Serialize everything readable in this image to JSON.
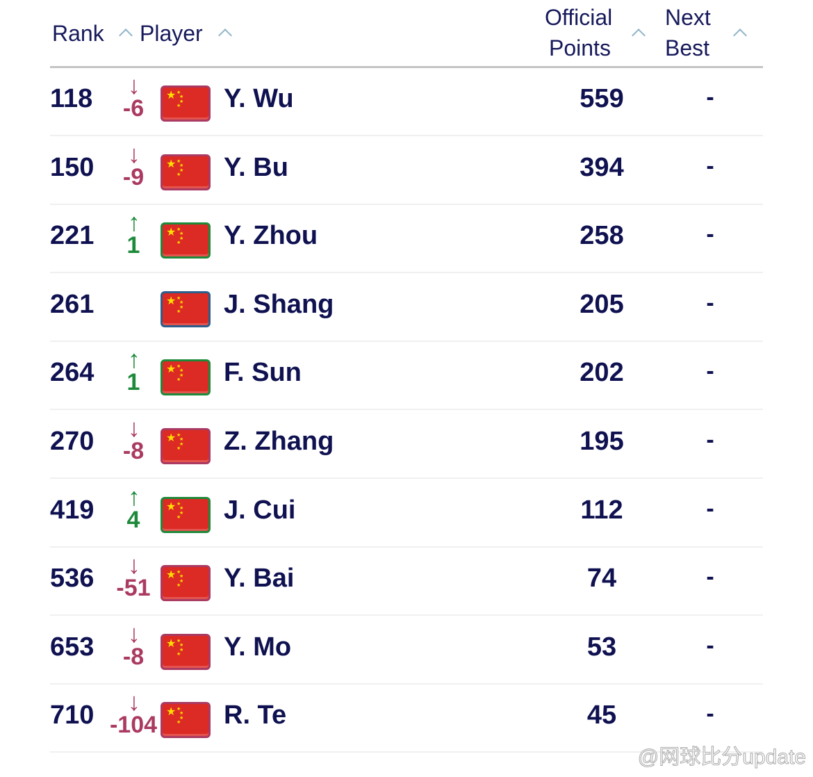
{
  "header": {
    "rank": "Rank",
    "player": "Player",
    "points_line1": "Official",
    "points_line2": "Points",
    "next_line1": "Next",
    "next_line2": "Best"
  },
  "colors": {
    "down": "#ab3a62",
    "up": "#1d8a3a",
    "same": "#2b5e8c",
    "flag": "#dc2a24"
  },
  "rows": [
    {
      "rank": "118",
      "dir": "down",
      "change": "-6",
      "country_icon": "china-flag",
      "name": "Y. Wu",
      "points": "559",
      "next_best": "-"
    },
    {
      "rank": "150",
      "dir": "down",
      "change": "-9",
      "country_icon": "china-flag",
      "name": "Y. Bu",
      "points": "394",
      "next_best": "-"
    },
    {
      "rank": "221",
      "dir": "up",
      "change": "1",
      "country_icon": "china-flag",
      "name": "Y. Zhou",
      "points": "258",
      "next_best": "-"
    },
    {
      "rank": "261",
      "dir": "same",
      "change": "",
      "country_icon": "china-flag",
      "name": "J. Shang",
      "points": "205",
      "next_best": "-"
    },
    {
      "rank": "264",
      "dir": "up",
      "change": "1",
      "country_icon": "china-flag",
      "name": "F. Sun",
      "points": "202",
      "next_best": "-"
    },
    {
      "rank": "270",
      "dir": "down",
      "change": "-8",
      "country_icon": "china-flag",
      "name": "Z. Zhang",
      "points": "195",
      "next_best": "-"
    },
    {
      "rank": "419",
      "dir": "up",
      "change": "4",
      "country_icon": "china-flag",
      "name": "J. Cui",
      "points": "112",
      "next_best": "-"
    },
    {
      "rank": "536",
      "dir": "down",
      "change": "-51",
      "country_icon": "china-flag",
      "name": "Y. Bai",
      "points": "74",
      "next_best": "-"
    },
    {
      "rank": "653",
      "dir": "down",
      "change": "-8",
      "country_icon": "china-flag",
      "name": "Y. Mo",
      "points": "53",
      "next_best": "-"
    },
    {
      "rank": "710",
      "dir": "down",
      "change": "-104",
      "country_icon": "china-flag",
      "name": "R. Te",
      "points": "45",
      "next_best": "-"
    }
  ],
  "watermark": "@网球比分update"
}
